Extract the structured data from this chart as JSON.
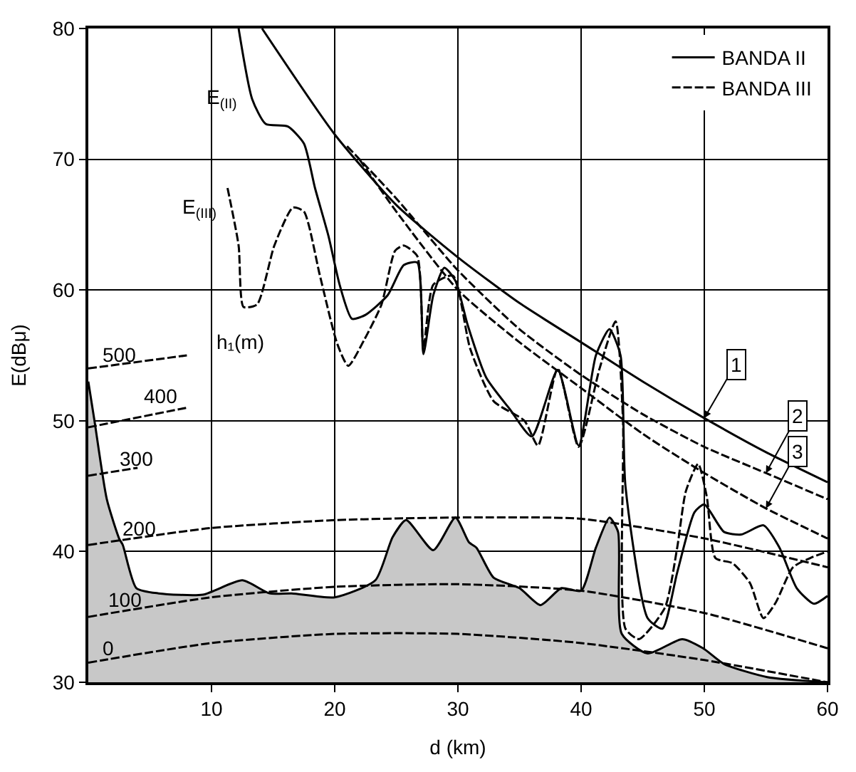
{
  "chart_data": {
    "type": "line",
    "xlabel": "d (km)",
    "ylabel": "E(dBμ)",
    "xlim": [
      0,
      60
    ],
    "ylim": [
      30,
      80
    ],
    "xticks": [
      10,
      20,
      30,
      40,
      50,
      60
    ],
    "yticks": [
      30,
      40,
      50,
      60,
      70,
      80
    ],
    "grid": true,
    "legend": "top right",
    "series": [
      {
        "type": "area",
        "color": "#c8c8c8",
        "x": [
          0,
          0.5,
          1.5,
          2.5,
          2.8,
          3.9,
          5.7,
          9.3,
          12.5,
          14.7,
          16.5,
          20,
          23.3,
          24.7,
          25.8,
          28,
          29.8,
          30.9,
          31.5,
          32.9,
          35,
          36.7,
          38.4,
          40,
          41.2,
          42.3,
          43,
          43.3,
          45.4,
          48.2,
          49.9,
          51.6,
          55.1,
          60
        ],
        "values": [
          53,
          50,
          44,
          41,
          40.5,
          37.2,
          36.8,
          36.7,
          37.8,
          36.8,
          36.8,
          36.5,
          37.8,
          41.1,
          42.4,
          40.1,
          42.6,
          40.7,
          40.3,
          38,
          37.2,
          35.9,
          37.2,
          37,
          40.3,
          42.6,
          41.5,
          33.7,
          32.2,
          33.3,
          32.6,
          31.4,
          30.4,
          30
        ]
      },
      {
        "name": "BANDA II",
        "color": "#000000",
        "line_style": "solid",
        "x": [
          12.2,
          13.3,
          14.4,
          16.2,
          17.5,
          18.4,
          19.5,
          20.4,
          21.4,
          22.5,
          24.3,
          25.6,
          26.7,
          27.2,
          28,
          28.9,
          29.8,
          30.8,
          32.3,
          34.2,
          36,
          38.1,
          39.8,
          41.2,
          42.3,
          43.2,
          43.6,
          45.4,
          46.6,
          47.8,
          49.2,
          50,
          51.6,
          53,
          54.8,
          56.1,
          57.5,
          58.9,
          60
        ],
        "values": [
          80,
          74.6,
          72.7,
          72.5,
          71.2,
          67.8,
          64.1,
          60.4,
          57.8,
          58.1,
          59.6,
          61.9,
          62.1,
          55.1,
          59.6,
          61.7,
          60.7,
          57.3,
          53.3,
          50.9,
          48.8,
          53.9,
          48.1,
          55,
          57,
          55,
          45,
          34.9,
          34.1,
          38.4,
          43,
          43.6,
          41.5,
          41.3,
          42,
          40.3,
          37.2,
          36,
          36.6
        ]
      },
      {
        "name": "BANDA III",
        "color": "#000000",
        "line_style": "dashed",
        "x": [
          11.3,
          12.2,
          12.6,
          13.7,
          15.1,
          16.6,
          17.5,
          18.8,
          20.2,
          21.1,
          22.4,
          23.8,
          24.9,
          25.6,
          26.7,
          27.2,
          28,
          29.6,
          31,
          32.9,
          35.4,
          36.5,
          38.1,
          39.8,
          41.5,
          42.8,
          43.4,
          43.6,
          44.7,
          46.8,
          47.8,
          48.5,
          49.5,
          50.2,
          50.9,
          52.3,
          53.7,
          54.8,
          55.8,
          57.2,
          58.6,
          60
        ],
        "values": [
          67.8,
          63.4,
          58.7,
          58.9,
          63.4,
          66.3,
          66,
          61.1,
          55.9,
          54.2,
          56.2,
          58.9,
          63,
          63.4,
          62.6,
          55.5,
          60.4,
          61.1,
          55.5,
          51.5,
          50,
          48.1,
          54,
          48,
          54,
          57.6,
          50,
          34.1,
          33.3,
          35.7,
          40.3,
          44.6,
          46.7,
          44.2,
          39.5,
          39.1,
          37.6,
          34.9,
          36.1,
          38.8,
          39.5,
          40
        ]
      },
      {
        "color": "#000000",
        "line_style": "solid",
        "x": [
          14.1,
          20,
          25,
          30,
          35,
          40,
          45,
          50,
          55,
          60
        ],
        "values": [
          80,
          71.9,
          66.5,
          62.5,
          59,
          56,
          53,
          50.2,
          47.6,
          45.3
        ]
      },
      {
        "color": "#000000",
        "line_style": "dashed",
        "x": [
          21,
          25,
          30,
          35,
          40,
          45,
          50,
          55,
          60
        ],
        "values": [
          71,
          67,
          61.5,
          57,
          53.5,
          50.5,
          48,
          46,
          44
        ]
      },
      {
        "color": "#000000",
        "line_style": "dashed",
        "x": [
          22,
          25,
          30,
          35,
          40,
          45,
          50,
          55,
          60
        ],
        "values": [
          70,
          66,
          60,
          56,
          52.5,
          49,
          46,
          43.3,
          41
        ]
      },
      {
        "color": "#000000",
        "line_style": "dashed",
        "x": [
          0,
          10,
          20,
          30,
          40,
          50,
          60
        ],
        "values": [
          31.5,
          33,
          33.7,
          33.7,
          33,
          31.7,
          30
        ]
      },
      {
        "color": "#000000",
        "line_style": "dashed",
        "x": [
          0,
          10,
          20,
          30,
          40,
          50,
          60
        ],
        "values": [
          35,
          36.5,
          37.3,
          37.5,
          37,
          35.3,
          32.6
        ]
      },
      {
        "color": "#000000",
        "line_style": "dashed",
        "x": [
          0,
          10,
          20,
          30,
          40,
          50,
          60
        ],
        "values": [
          40.5,
          41.8,
          42.4,
          42.6,
          42.5,
          41,
          38.8
        ]
      },
      {
        "color": "#000000",
        "line_style": "dashed",
        "x": [
          0,
          4
        ],
        "values": [
          45.8,
          46.4
        ]
      },
      {
        "color": "#000000",
        "line_style": "dashed",
        "x": [
          0,
          8
        ],
        "values": [
          49.5,
          51
        ]
      },
      {
        "color": "#000000",
        "line_style": "dashed",
        "x": [
          0,
          8
        ],
        "values": [
          54,
          55
        ]
      }
    ],
    "annotations": [
      {
        "text": "E$_{(II)}$",
        "x": 13.3,
        "y": 74.6
      },
      {
        "text": "E$_{(III)}$",
        "x": 11.3,
        "y": 67.8
      },
      {
        "text": "1",
        "x": 50,
        "y": 50.2
      },
      {
        "text": "2",
        "x": 55,
        "y": 46
      },
      {
        "text": "3",
        "x": 55,
        "y": 43.3
      },
      {
        "text": "500",
        "x": 0,
        "y": 54
      },
      {
        "text": "400",
        "x": 8,
        "y": 51
      },
      {
        "text": "300",
        "x": 0,
        "y": 45.8
      },
      {
        "text": "200",
        "x": 0,
        "y": 40.5
      },
      {
        "text": "100",
        "x": 0,
        "y": 35
      },
      {
        "text": "0",
        "x": 0,
        "y": 31.5
      },
      {
        "text": "h₁(m)",
        "x": 8,
        "y": 55
      }
    ]
  }
}
